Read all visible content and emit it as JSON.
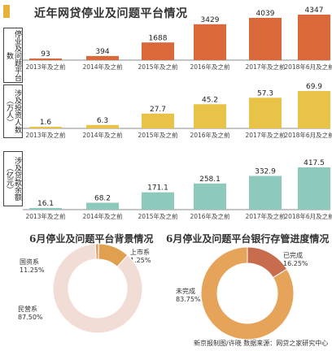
{
  "header": {
    "title": "近年网贷停业及问题平台情况"
  },
  "chart_data": [
    {
      "type": "bar",
      "ylabel": "停业及问题平台数",
      "categories": [
        "2013年及之前",
        "2014年及之前",
        "2015年及之前",
        "2016年及之前",
        "2017年及之前",
        "2018年6月及之前"
      ],
      "values": [
        93,
        394,
        1688,
        3429,
        4039,
        4347
      ],
      "value_labels": [
        "93",
        "394",
        "1688",
        "3429",
        "4039",
        "4347"
      ],
      "color": "#d9693a"
    },
    {
      "type": "bar",
      "ylabel": "涉及投资人数（万人）",
      "categories": [
        "2013年及之前",
        "2014年及之前",
        "2015年及之前",
        "2016年及之前",
        "2017年及之前",
        "2018年6月及之前"
      ],
      "values": [
        1.6,
        6.3,
        27.7,
        45.2,
        57.3,
        69.9
      ],
      "value_labels": [
        "1.6",
        "6.3",
        "27.7",
        "45.2",
        "57.3",
        "69.9"
      ],
      "color": "#e9c347"
    },
    {
      "type": "bar",
      "ylabel": "涉及贷款余额（亿元）",
      "categories": [
        "2013年及之前",
        "2014年及之前",
        "2015年及之前",
        "2016年及之前",
        "2017年及之前",
        "2018年6月及之前"
      ],
      "values": [
        16.1,
        68.2,
        171.1,
        258.1,
        332.9,
        417.5
      ],
      "value_labels": [
        "16.1",
        "68.2",
        "171.1",
        "258.1",
        "332.9",
        "417.5"
      ],
      "color": "#8ec9bd"
    },
    {
      "type": "pie",
      "title": "6月停业及问题平台背景情况",
      "slices": [
        {
          "label": "上市系",
          "value_label": "1.25%",
          "value": 1.25,
          "color": "#d9a06a"
        },
        {
          "label": "国资系",
          "value_label": "11.25%",
          "value": 11.25,
          "color": "#e0a04f"
        },
        {
          "label": "民营系",
          "value_label": "87.50%",
          "value": 87.5,
          "color": "#f2ddd6"
        }
      ]
    },
    {
      "type": "pie",
      "title": "6月停业及问题平台银行存管进度情况",
      "slices": [
        {
          "label": "已完成",
          "value_label": "16.25%",
          "value": 16.25,
          "color": "#c86c4e"
        },
        {
          "label": "未完成",
          "value_label": "83.75%",
          "value": 83.75,
          "color": "#e6a45a"
        }
      ]
    }
  ],
  "footer": {
    "source": "新京报制图/许晓   数据来源：网贷之家研究中心"
  }
}
